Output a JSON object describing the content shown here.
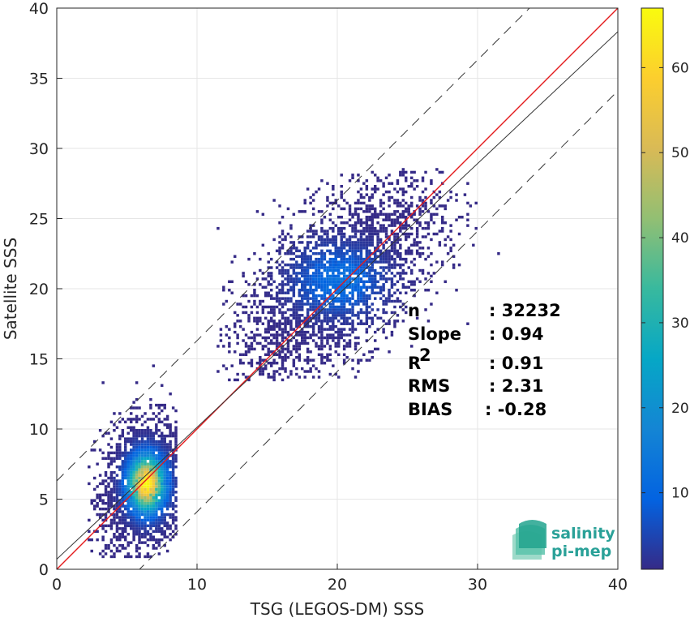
{
  "chart_data": {
    "type": "heatmap",
    "subtype": "2D density scatter",
    "xlabel": "TSG (LEGOS-DM) SSS",
    "ylabel": "Satellite SSS",
    "xlim": [
      0,
      40
    ],
    "ylim": [
      0,
      40
    ],
    "xticks": [
      0,
      10,
      20,
      30,
      40
    ],
    "yticks": [
      0,
      5,
      10,
      15,
      20,
      25,
      30,
      35,
      40
    ],
    "grid": true,
    "colorbar": {
      "range": [
        1,
        67
      ],
      "ticks": [
        10,
        20,
        30,
        40,
        50,
        60
      ],
      "colormap": "parula"
    },
    "lines": [
      {
        "label": "1:1 line",
        "color": "#e31a1c",
        "style": "solid",
        "slope": 1.0,
        "intercept": 0.0
      },
      {
        "label": "fit",
        "color": "#333333",
        "style": "solid",
        "slope": 0.94,
        "intercept": 0.72
      },
      {
        "label": "upper bound",
        "color": "#333333",
        "style": "dashed",
        "slope": 1.0,
        "intercept": 6.3
      },
      {
        "label": "lower bound",
        "color": "#333333",
        "style": "dashed",
        "slope": 1.0,
        "intercept": -5.9
      }
    ],
    "clusters": [
      {
        "name": "low salinity",
        "x_center": 6.3,
        "y_center": 6.0,
        "x_spread": 1.5,
        "y_spread": 2.3,
        "x_range": [
          2.3,
          8.6
        ],
        "y_range": [
          0.8,
          15.7
        ],
        "peak_density": 67
      },
      {
        "name": "high salinity",
        "x_center": 20.0,
        "y_center": 20.5,
        "x_spread": 3.6,
        "y_spread": 2.8,
        "x_range": [
          11.5,
          32.0
        ],
        "y_range": [
          13.5,
          28.5
        ],
        "peak_density": 14
      }
    ]
  },
  "stats": [
    {
      "label": "n",
      "value": ": 32232"
    },
    {
      "label": "Slope",
      "value": ": 0.94"
    },
    {
      "label": "R",
      "sup": "2",
      "value": ": 0.91"
    },
    {
      "label": "RMS",
      "value": ": 2.31"
    },
    {
      "label": "BIAS",
      "value": ": -0.28"
    }
  ],
  "logo": {
    "line1": "salinity",
    "line2": "pi-mep"
  },
  "colors": {
    "one_to_one": "#e31a1c",
    "fit": "#333333",
    "grid": "#e6e6e6",
    "logo": "#2aa198"
  }
}
